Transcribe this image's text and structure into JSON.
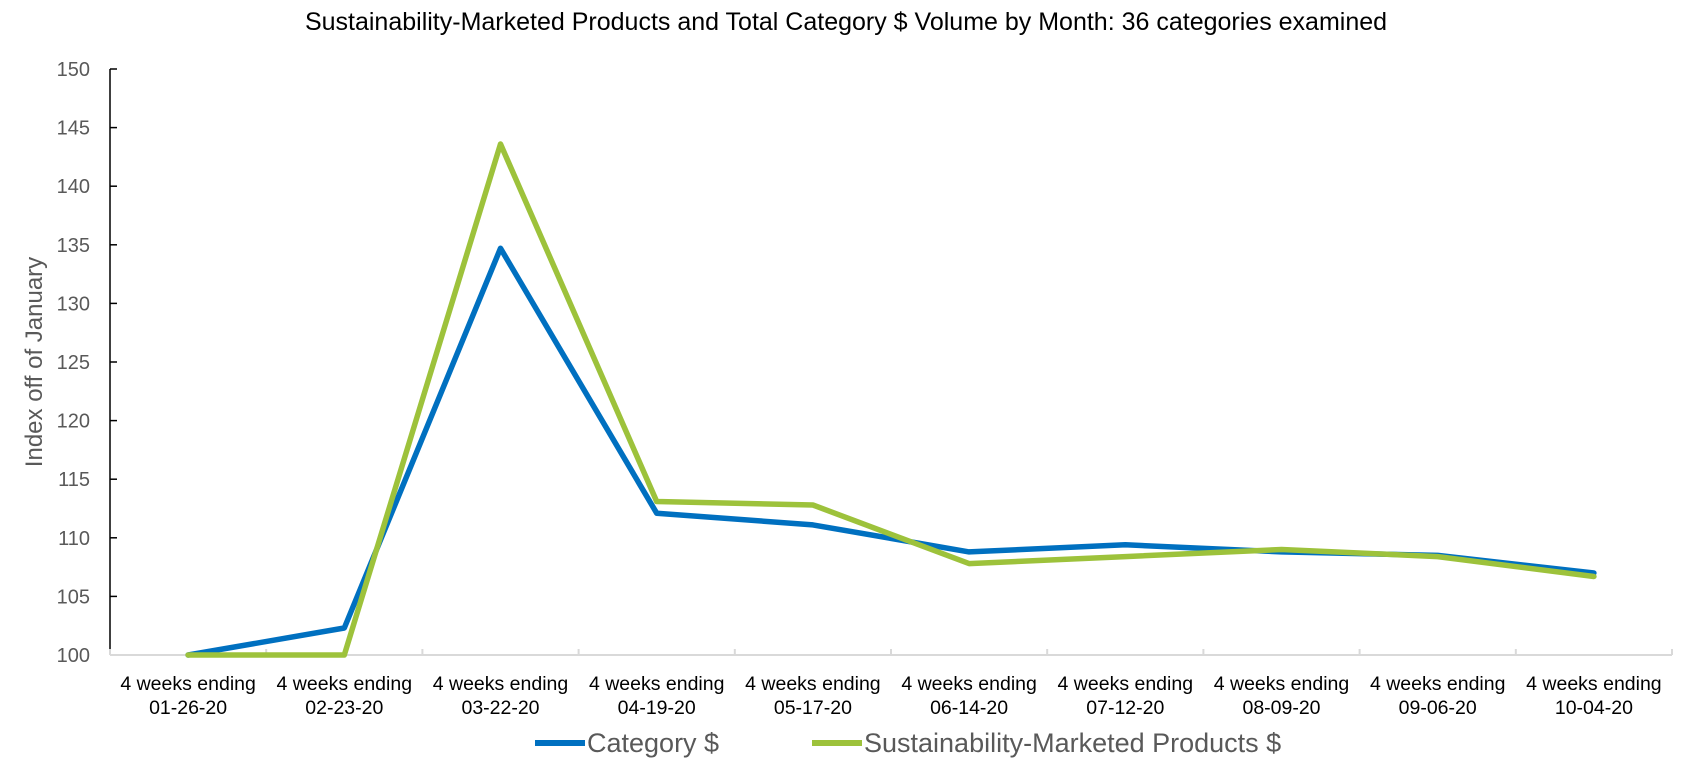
{
  "chart_data": {
    "type": "line",
    "title": "Sustainability-Marketed Products and Total Category $ Volume by Month: 36 categories examined",
    "xlabel": "",
    "ylabel": "Index off of January",
    "ylim": [
      100,
      150
    ],
    "yticks": [
      100,
      105,
      110,
      115,
      120,
      125,
      130,
      135,
      140,
      145,
      150
    ],
    "grid": false,
    "legend_position": "bottom",
    "categories": [
      [
        "4 weeks ending",
        "01-26-20"
      ],
      [
        "4 weeks ending",
        "02-23-20"
      ],
      [
        "4 weeks ending",
        "03-22-20"
      ],
      [
        "4 weeks ending",
        "04-19-20"
      ],
      [
        "4 weeks ending",
        "05-17-20"
      ],
      [
        "4 weeks ending",
        "06-14-20"
      ],
      [
        "4 weeks ending",
        "07-12-20"
      ],
      [
        "4 weeks ending",
        "08-09-20"
      ],
      [
        "4 weeks ending",
        "09-06-20"
      ],
      [
        "4 weeks ending",
        "10-04-20"
      ]
    ],
    "series": [
      {
        "name": "Category $",
        "color": "#0070C0",
        "values": [
          100.0,
          102.3,
          134.7,
          112.1,
          111.1,
          108.8,
          109.4,
          108.8,
          108.5,
          107.0
        ]
      },
      {
        "name": "Sustainability-Marketed Products $",
        "color": "#9DC23B",
        "values": [
          100.0,
          100.0,
          143.6,
          113.1,
          112.8,
          107.8,
          108.4,
          109.0,
          108.4,
          106.7
        ]
      }
    ]
  }
}
